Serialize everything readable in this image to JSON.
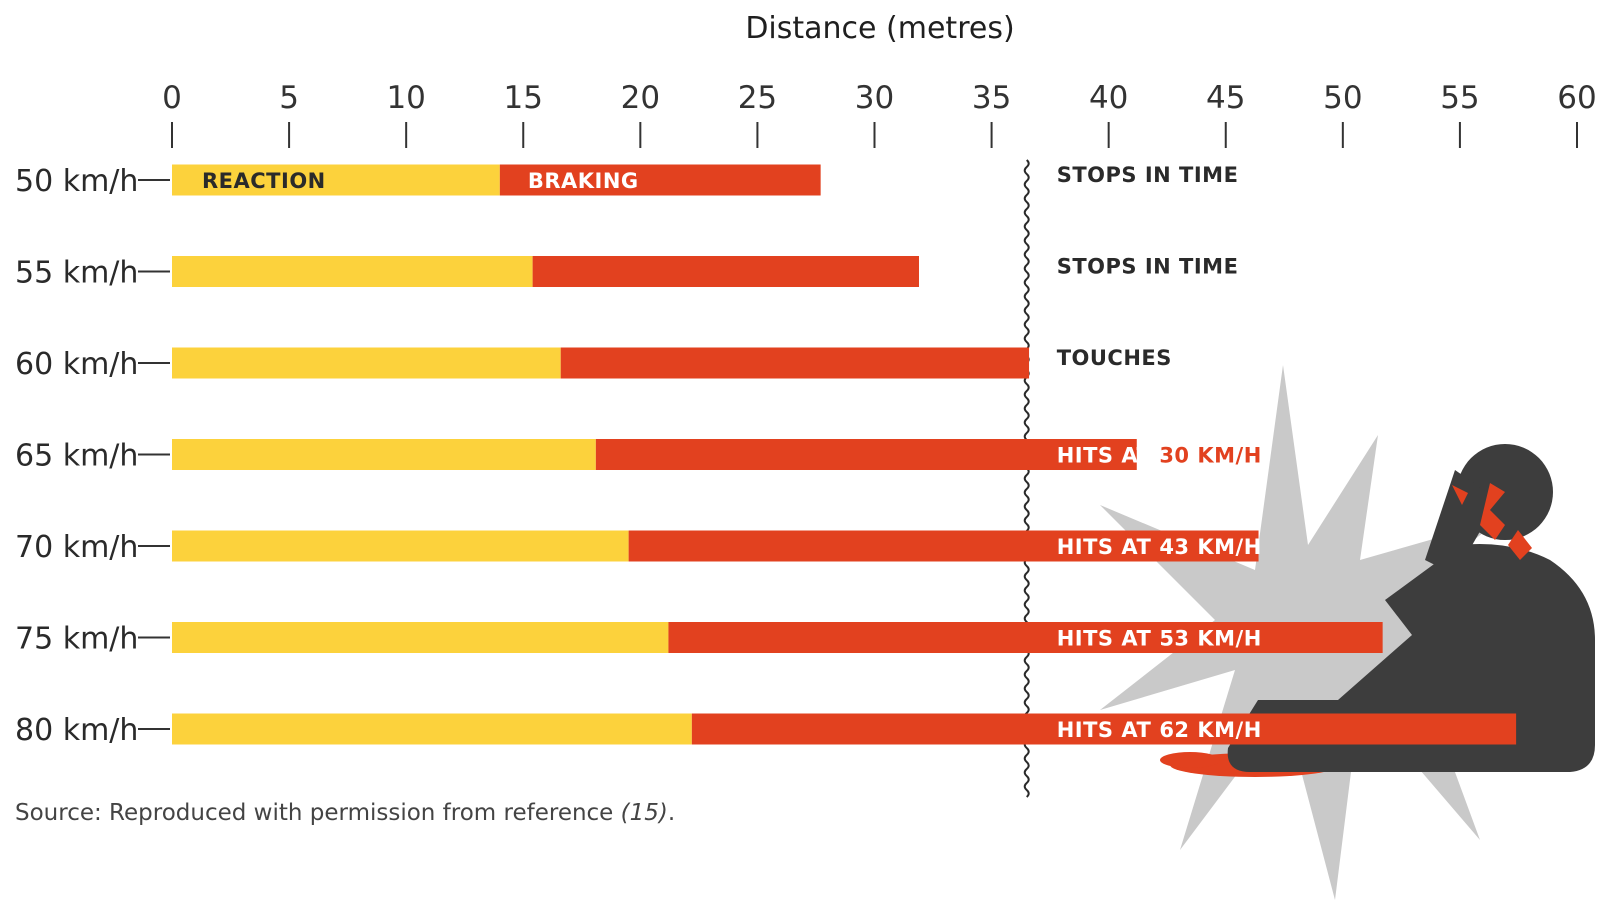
{
  "chart_data": {
    "type": "bar",
    "orientation": "horizontal",
    "stacked": true,
    "xlabel": "Distance (metres)",
    "xlim": [
      0,
      60
    ],
    "x_ticks": [
      0,
      5,
      10,
      15,
      20,
      25,
      30,
      35,
      40,
      45,
      50,
      55,
      60
    ],
    "grid": false,
    "obstacle_distance": 36.5,
    "categories": [
      "50 km/h",
      "55 km/h",
      "60 km/h",
      "65 km/h",
      "70 km/h",
      "75 km/h",
      "80 km/h"
    ],
    "series": [
      {
        "name": "REACTION",
        "color": "#fcd23c",
        "values": [
          14.0,
          15.4,
          16.6,
          18.1,
          19.5,
          21.2,
          22.2
        ]
      },
      {
        "name": "BRAKING",
        "color": "#e2411f",
        "values": [
          13.7,
          16.5,
          20.0,
          23.1,
          26.9,
          30.5,
          35.2
        ]
      }
    ],
    "outcomes": [
      {
        "prefix": "STOPS IN TIME",
        "speed": ""
      },
      {
        "prefix": "STOPS IN TIME",
        "speed": ""
      },
      {
        "prefix": "TOUCHES",
        "speed": ""
      },
      {
        "prefix": "HITS AT",
        "speed": "30 KM/H"
      },
      {
        "prefix": "HITS AT",
        "speed": "43 KM/H"
      },
      {
        "prefix": "HITS AT",
        "speed": "53 KM/H"
      },
      {
        "prefix": "HITS AT",
        "speed": "62 KM/H"
      }
    ],
    "source": {
      "text": "Source: Reproduced with permission from reference ",
      "ref": "(15)",
      "end": "."
    }
  },
  "colors": {
    "reaction": "#fcd23c",
    "braking": "#e2411f",
    "text_dark": "#2a2a2a",
    "figure": "#3d3d3d",
    "burst": "#c9c9c9"
  },
  "illustration": "pedestrian-impact-icon"
}
